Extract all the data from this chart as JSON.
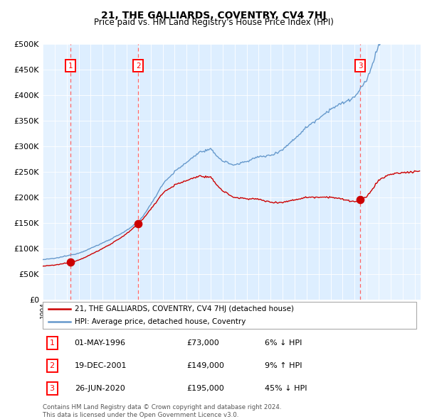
{
  "title": "21, THE GALLIARDS, COVENTRY, CV4 7HJ",
  "subtitle": "Price paid vs. HM Land Registry's House Price Index (HPI)",
  "legend_label_red": "21, THE GALLIARDS, COVENTRY, CV4 7HJ (detached house)",
  "legend_label_blue": "HPI: Average price, detached house, Coventry",
  "transactions": [
    {
      "num": 1,
      "date_year": 1996.33,
      "price": 73000
    },
    {
      "num": 2,
      "date_year": 2001.97,
      "price": 149000
    },
    {
      "num": 3,
      "date_year": 2020.48,
      "price": 195000
    }
  ],
  "table_rows": [
    {
      "num": 1,
      "date": "01-MAY-1996",
      "price": "£73,000",
      "rel": "6% ↓ HPI"
    },
    {
      "num": 2,
      "date": "19-DEC-2001",
      "price": "£149,000",
      "rel": "9% ↑ HPI"
    },
    {
      "num": 3,
      "date": "26-JUN-2020",
      "price": "£195,000",
      "rel": "45% ↓ HPI"
    }
  ],
  "footer": "Contains HM Land Registry data © Crown copyright and database right 2024.\nThis data is licensed under the Open Government Licence v3.0.",
  "xmin": 1994.0,
  "xmax": 2025.5,
  "ymin": 0,
  "ymax": 500000,
  "yticks": [
    0,
    50000,
    100000,
    150000,
    200000,
    250000,
    300000,
    350000,
    400000,
    450000,
    500000
  ],
  "red_color": "#cc0000",
  "blue_color": "#6699cc",
  "bg_color": "#ddeeff",
  "hatch_color": "#aabbcc",
  "grid_color": "#ffffff",
  "dashed_color": "#ff6666"
}
